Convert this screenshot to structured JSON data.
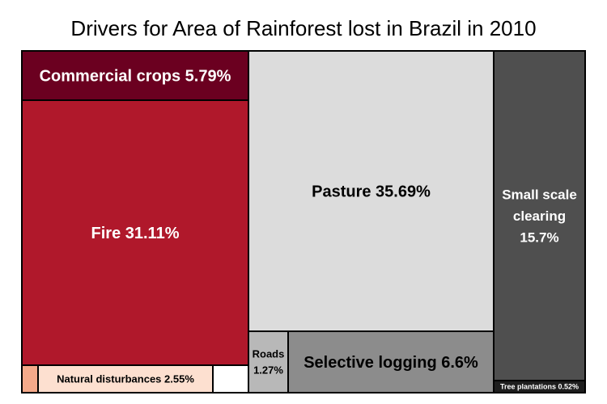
{
  "chart_data": {
    "type": "treemap",
    "title": "Drivers for Area of Rainforest lost in Brazil in 2010",
    "items": [
      {
        "label": "Commercial crops",
        "value": 5.79,
        "display": "5.79%",
        "color": "#6b0020",
        "text_color": "#ffffff"
      },
      {
        "label": "Fire",
        "value": 31.11,
        "display": "31.11%",
        "color": "#b0182b",
        "text_color": "#ffffff"
      },
      {
        "label": "",
        "value": 0.55,
        "display": "",
        "color": "#f4a98a",
        "text_color": "#000000"
      },
      {
        "label": "Natural disturbances",
        "value": 2.55,
        "display": "2.55%",
        "color": "#fde0d0",
        "text_color": "#000000"
      },
      {
        "label": "",
        "value": 0.96,
        "display": "",
        "color": "#ffffff",
        "text_color": "#000000"
      },
      {
        "label": "Pasture",
        "value": 35.69,
        "display": "35.69%",
        "color": "#dcdcdc",
        "text_color": "#000000"
      },
      {
        "label": "Roads",
        "value": 1.27,
        "display": "1.27%",
        "color": "#b8b8b8",
        "text_color": "#000000"
      },
      {
        "label": "Selective logging",
        "value": 6.6,
        "display": "6.6%",
        "color": "#8c8c8c",
        "text_color": "#000000"
      },
      {
        "label": "Small scale clearing",
        "value": 15.7,
        "display": "15.7%",
        "color": "#4f4f4f",
        "text_color": "#ffffff"
      },
      {
        "label": "Tree plantations",
        "value": 0.52,
        "display": "0.52%",
        "color": "#1e1e1e",
        "text_color": "#ffffff"
      }
    ]
  }
}
